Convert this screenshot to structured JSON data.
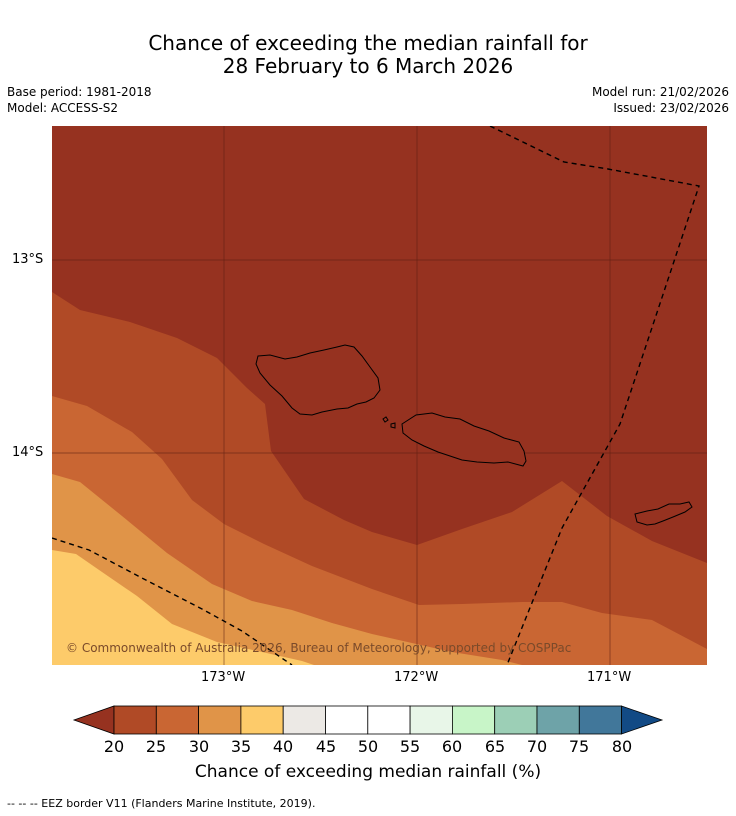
{
  "header": {
    "title_line1": "Chance of exceeding the median rainfall for",
    "title_line2": "28 February to 6 March 2026",
    "base_period": "Base period: 1981-2018",
    "model": "Model: ACCESS-S2",
    "model_run": "Model run: 21/02/2026",
    "issued": "Issued: 23/02/2026"
  },
  "map": {
    "region": "Samoa and American Samoa",
    "lat_labels": [
      "13°S",
      "14°S"
    ],
    "lon_labels": [
      "173°W",
      "172°W",
      "171°W"
    ],
    "copyright": "© Commonwealth of Australia 2026, Bureau of Meteorology, supported by COSPPac",
    "dominant_category": "20",
    "colors": {
      "lt20": "#963220",
      "c20_25": "#b04a26",
      "c25_30": "#c96633",
      "c30_35": "#e09448",
      "c35_40": "#fdcb6a",
      "eez_line": "#000000"
    }
  },
  "colorbar": {
    "labels": [
      "20",
      "25",
      "30",
      "35",
      "40",
      "45",
      "50",
      "55",
      "60",
      "65",
      "70",
      "75",
      "80"
    ],
    "colors": [
      "#963220",
      "#b04a26",
      "#c96633",
      "#e09448",
      "#fdcb6a",
      "#ece9e5",
      "#ffffff",
      "#ffffff",
      "#e8f6e8",
      "#c8f5c8",
      "#9ccfb6",
      "#6ea3a8",
      "#41779a",
      "#124a85"
    ],
    "title": "Chance of exceeding median rainfall (%)"
  },
  "footnote": "--  --  -- EEZ border V11 (Flanders Marine Institute, 2019)."
}
